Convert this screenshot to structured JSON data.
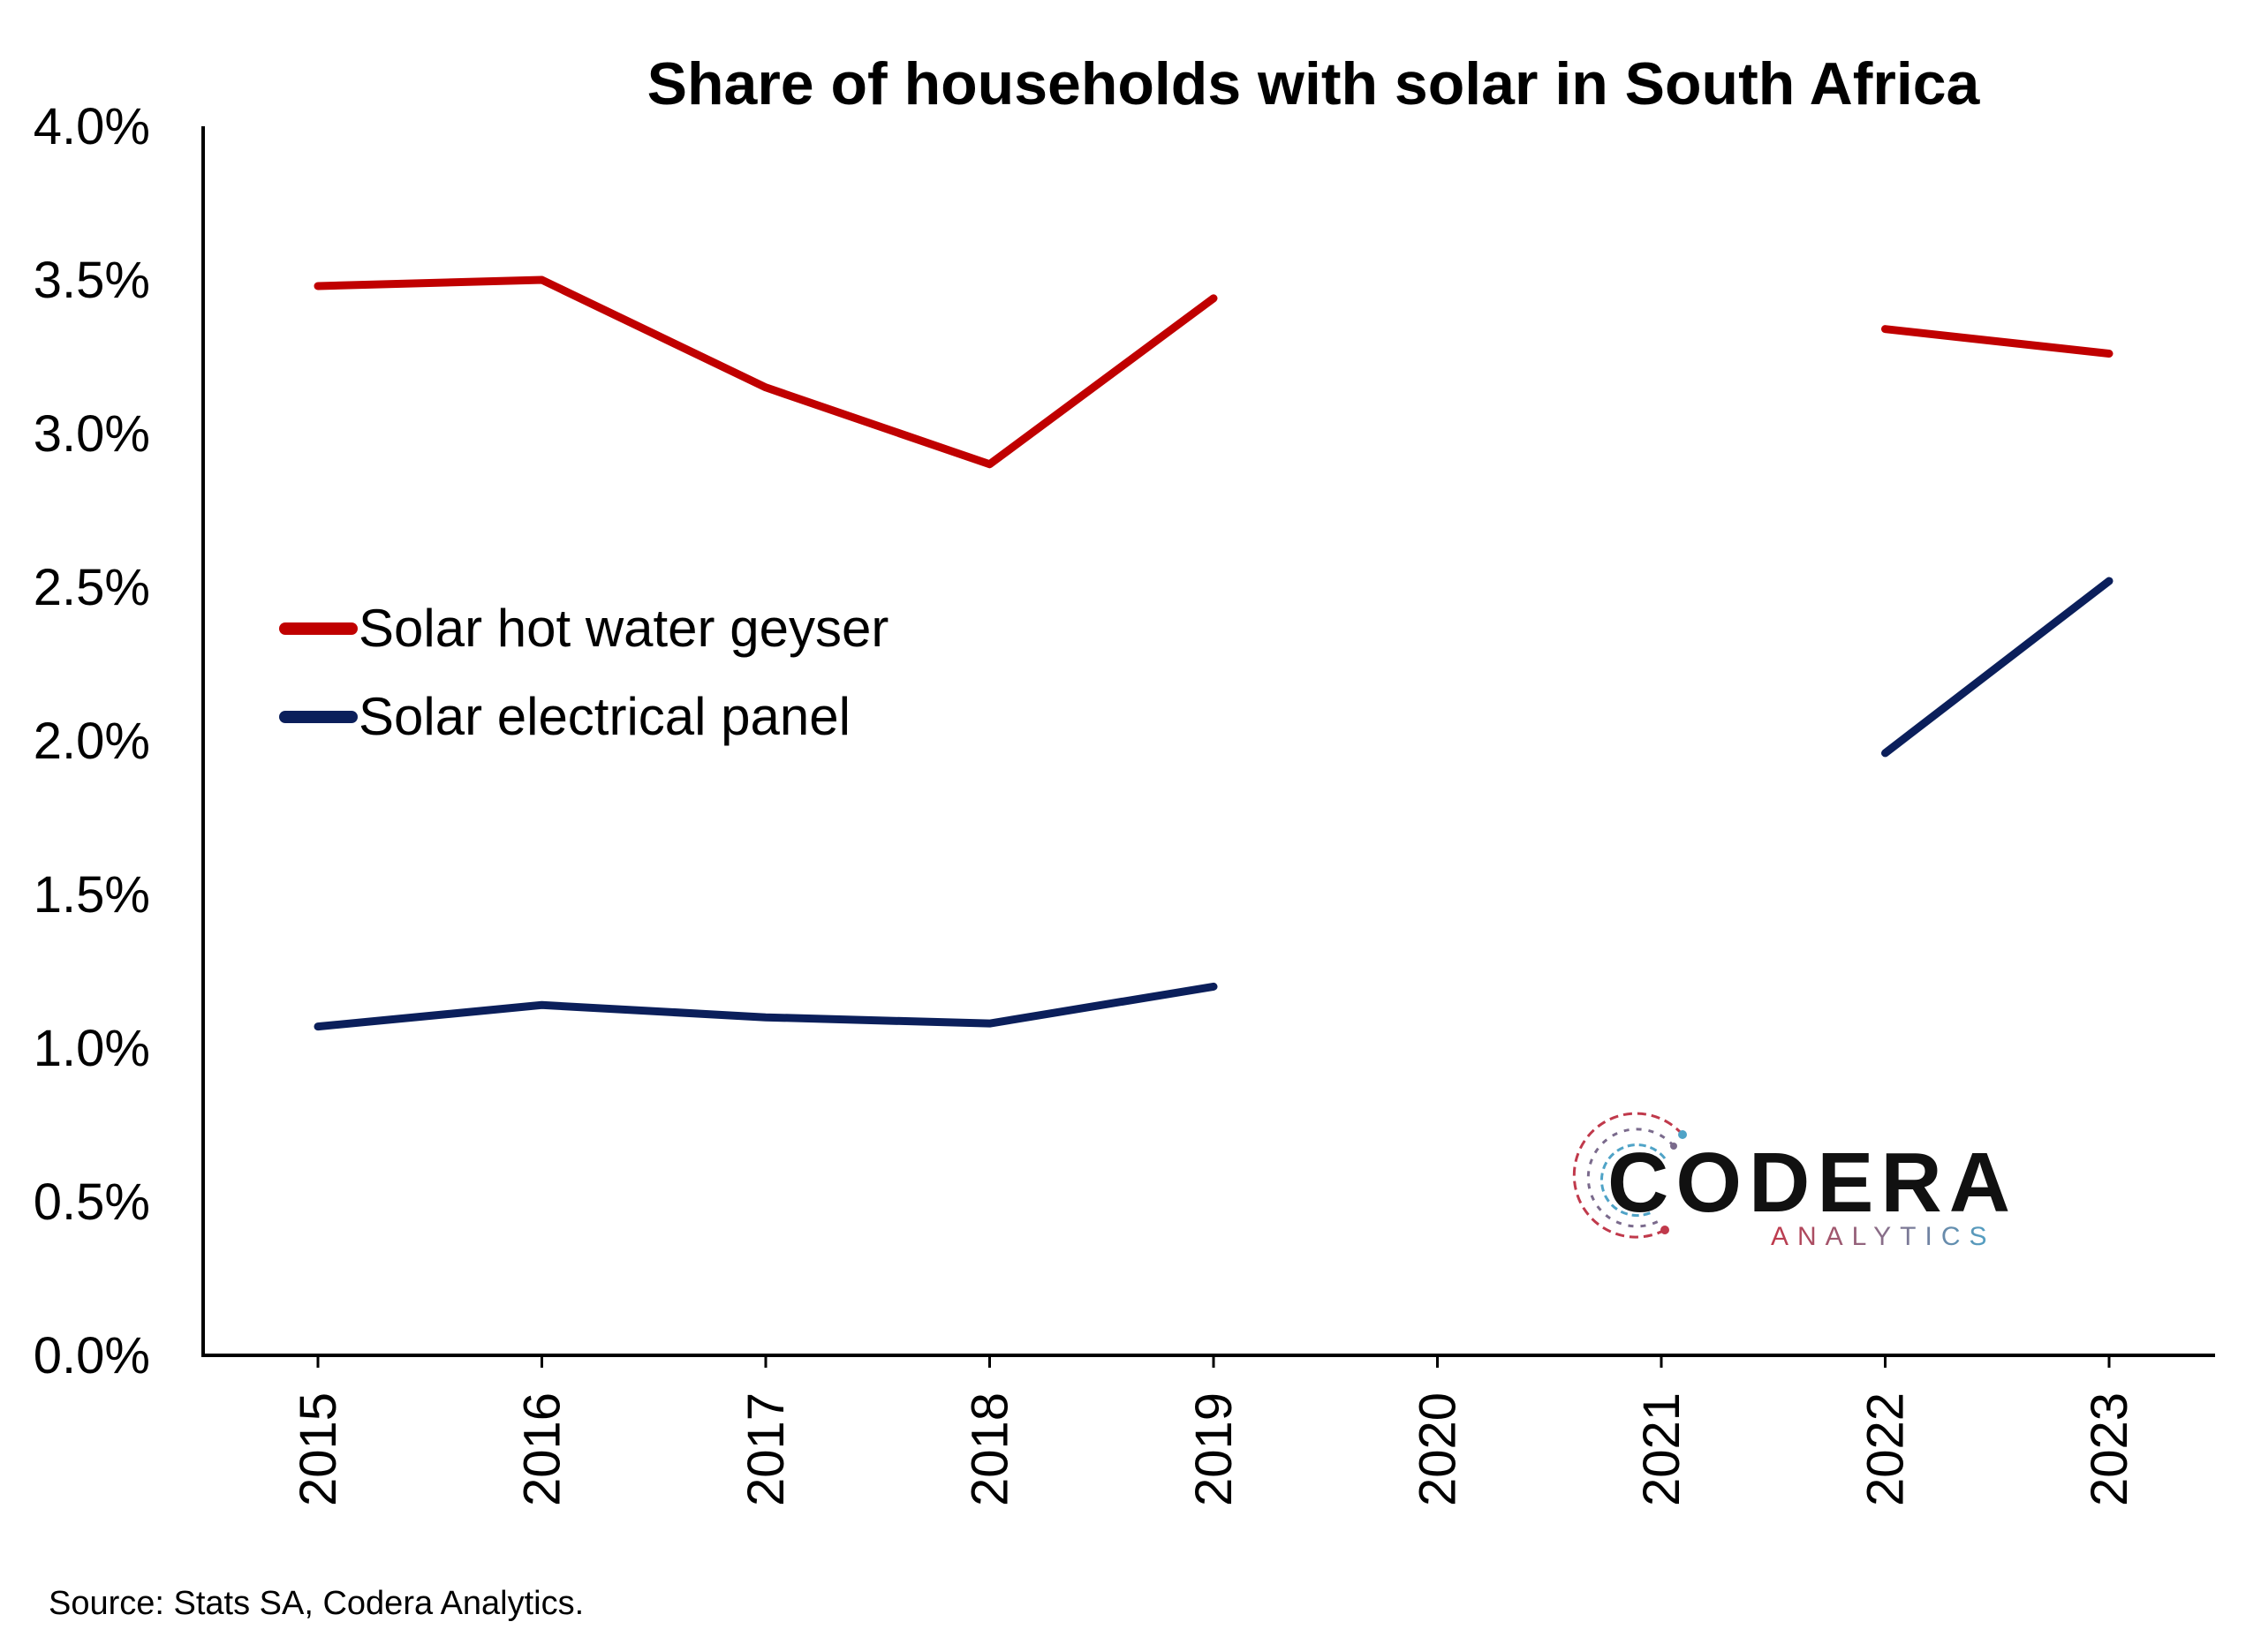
{
  "chart_data": {
    "type": "line",
    "title": "Share of households with solar in South Africa",
    "xlabel": "",
    "ylabel": "",
    "categories": [
      "2015",
      "2016",
      "2017",
      "2018",
      "2019",
      "2020",
      "2021",
      "2022",
      "2023"
    ],
    "ylim": [
      0,
      4.0
    ],
    "yticks": [
      "0.0%",
      "0.5%",
      "1.0%",
      "1.5%",
      "2.0%",
      "2.5%",
      "3.0%",
      "3.5%",
      "4.0%"
    ],
    "grid": false,
    "legend_position": "middle-left",
    "series": [
      {
        "name": "Solar hot water geyser",
        "color": "#C00000",
        "values": [
          3.48,
          3.5,
          3.15,
          2.9,
          3.44,
          null,
          null,
          3.34,
          3.26
        ]
      },
      {
        "name": "Solar electrical panel",
        "color": "#0B1F5B",
        "values": [
          1.07,
          1.14,
          1.1,
          1.08,
          1.2,
          null,
          null,
          1.96,
          2.52
        ]
      }
    ]
  },
  "source_note": "Source: Stats SA, Codera Analytics.",
  "logo": {
    "name": "CODERA",
    "subtitle": "ANALYTICS",
    "colors": {
      "text": "#111111",
      "red": "#C0394B",
      "blue": "#4FA3C7"
    }
  }
}
